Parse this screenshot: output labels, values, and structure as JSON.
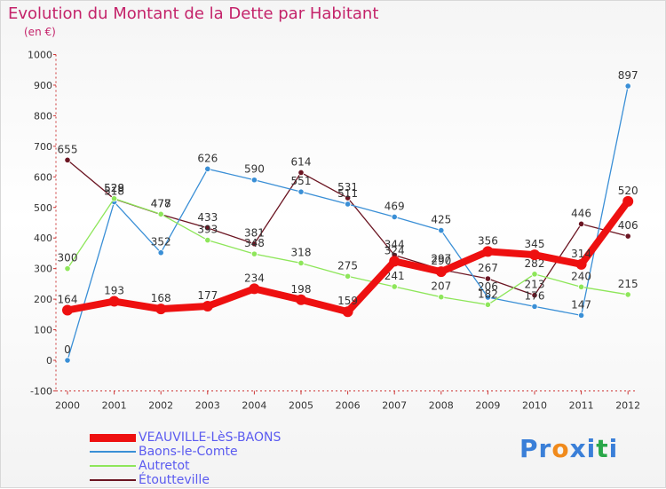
{
  "chart_data": {
    "type": "line",
    "title": "Evolution du Montant de la Dette par Habitant",
    "subtitle": "(en €)",
    "categories": [
      "2000",
      "2001",
      "2002",
      "2003",
      "2004",
      "2005",
      "2006",
      "2007",
      "2008",
      "2009",
      "2010",
      "2011",
      "2012"
    ],
    "y_ticks": [
      "-100",
      "0",
      "100",
      "200",
      "300",
      "400",
      "500",
      "600",
      "700",
      "800",
      "900",
      "1000"
    ],
    "ylim": [
      -100,
      1000
    ],
    "grid": false,
    "legend_placement": "bottom-left",
    "series": [
      {
        "name": "Étoutteville",
        "color": "#6b1522",
        "labels": true,
        "values": [
          655,
          528,
          477,
          433,
          381,
          614,
          531,
          344,
          297,
          267,
          213,
          446,
          406
        ]
      },
      {
        "name": "Baons-le-Comte",
        "color": "#3a8fd6",
        "labels": true,
        "values": [
          0,
          518,
          352,
          626,
          590,
          551,
          511,
          469,
          425,
          206,
          176,
          147,
          897
        ]
      },
      {
        "name": "Autretot",
        "color": "#8ee65a",
        "labels": true,
        "values": [
          300,
          529,
          478,
          393,
          348,
          318,
          275,
          241,
          207,
          182,
          282,
          240,
          215
        ]
      },
      {
        "name": "VEAUVILLE-LèS-BAONS",
        "color": "#ee1010",
        "labels": true,
        "values": [
          164,
          193,
          168,
          177,
          234,
          198,
          159,
          324,
          290,
          356,
          345,
          314,
          520
        ]
      }
    ],
    "legend": [
      "VEAUVILLE-LèS-BAONS",
      "Baons-le-Comte",
      "Autretot",
      "Étoutteville"
    ],
    "value_labels": {
      "Étoutteville": [
        "655",
        "528",
        "477",
        "433",
        "381",
        "614",
        "531",
        "344",
        "297",
        "267",
        "213",
        "446",
        "406"
      ],
      "Baons-le-Comte": [
        "0",
        "518",
        "352",
        "626",
        "590",
        "551",
        "511",
        "469",
        "425",
        "206",
        "176",
        "147",
        "897"
      ],
      "Autretot": [
        "300",
        "529",
        "478",
        "393",
        "348",
        "318",
        "275",
        "241",
        "207",
        "182",
        "282",
        "240",
        "215"
      ],
      "VEAUVILLE-LèS-BAONS": [
        "164",
        "193",
        "168",
        "177",
        "234",
        "198",
        "159",
        "324",
        "290",
        "356",
        "345",
        "314",
        "520"
      ]
    }
  },
  "logo": {
    "text": "Proxiti",
    "letters": [
      "P",
      "r",
      "o",
      "x",
      "i",
      "t",
      "i"
    ],
    "colors": [
      "#3a7fd8",
      "#3a7fd8",
      "#f08a1c",
      "#3a7fd8",
      "#3a7fd8",
      "#2aa84a",
      "#3a7fd8"
    ]
  }
}
